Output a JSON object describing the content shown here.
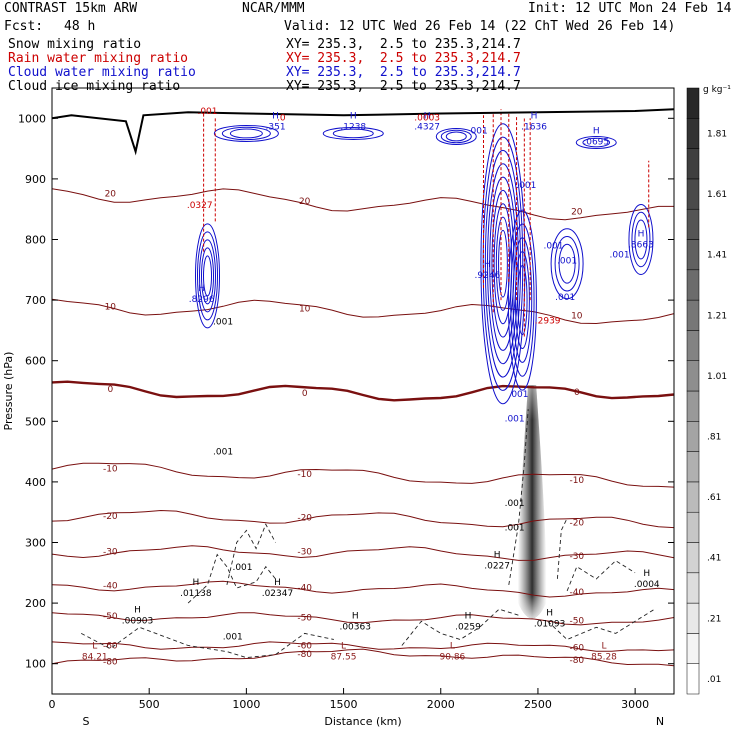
{
  "header": {
    "model": "CONTRAST 15km ARW",
    "center": "NCAR/MMM",
    "init": "Init: 12 UTC Mon 24 Feb 14",
    "fcst_label": "Fcst:",
    "fcst_value": "48 h",
    "valid": "Valid: 12 UTC Wed 26 Feb 14 (22 ChT Wed 26 Feb 14)",
    "fields": [
      {
        "name": "Snow mixing ratio",
        "xy": "XY= 235.3,  2.5 to 235.3,214.7",
        "color": "#000000"
      },
      {
        "name": "Rain water mixing ratio",
        "xy": "XY= 235.3,  2.5 to 235.3,214.7",
        "color": "#cc0000"
      },
      {
        "name": "Cloud water mixing ratio",
        "xy": "XY= 235.3,  2.5 to 235.3,214.7",
        "color": "#1010cc"
      },
      {
        "name": "Cloud ice mixing ratio",
        "xy": "XY= 235.3,  2.5 to 235.3,214.7",
        "color": "#000000"
      }
    ]
  },
  "chart_data": {
    "type": "cross-section",
    "xlabel": "Distance (km)",
    "ylabel": "Pressure (hPa)",
    "xlim": [
      0,
      3200
    ],
    "ylim": [
      1050,
      50
    ],
    "x_ticks": [
      "0",
      "500",
      "1000",
      "1500",
      "2000",
      "2500",
      "3000"
    ],
    "y_ticks": [
      "100",
      "200",
      "300",
      "400",
      "500",
      "600",
      "700",
      "800",
      "900",
      "1000"
    ],
    "x_end_labels": [
      "S",
      "N"
    ],
    "colorbar": {
      "units": "g kg⁻¹",
      "ticks": [
        "1.81",
        "1.61",
        "1.41",
        "1.21",
        "1.01",
        ".81",
        ".61",
        ".41",
        ".21",
        ".01"
      ],
      "levels": [
        0.01,
        0.11,
        0.21,
        0.31,
        0.41,
        0.51,
        0.61,
        0.71,
        0.81,
        0.91,
        1.01,
        1.11,
        1.21,
        1.31,
        1.41,
        1.51,
        1.61,
        1.71,
        1.81,
        1.91
      ]
    },
    "temperature_isotherms": [
      {
        "label": "-80",
        "p": [
          100,
          120,
          100
        ]
      },
      {
        "label": "-60",
        "p": [
          130,
          130,
          125
        ]
      },
      {
        "label": "-50",
        "p": [
          180,
          175,
          170
        ]
      },
      {
        "label": "-40",
        "p": [
          230,
          225,
          215
        ]
      },
      {
        "label": "-30",
        "p": [
          285,
          285,
          275
        ]
      },
      {
        "label": "-20",
        "p": [
          345,
          340,
          330
        ]
      },
      {
        "label": "-10",
        "p": [
          425,
          410,
          400
        ]
      },
      {
        "label": "0",
        "p": [
          555,
          545,
          550
        ]
      },
      {
        "label": "10",
        "p": [
          690,
          685,
          670
        ]
      },
      {
        "label": "20",
        "p": [
          880,
          860,
          840
        ]
      }
    ],
    "terrain": {
      "x": [
        0,
        100,
        380,
        430,
        470,
        700,
        1000,
        1500,
        2000,
        2500,
        3000,
        3200
      ],
      "p": [
        1000,
        1005,
        995,
        945,
        1005,
        1010,
        1008,
        1005,
        1008,
        1010,
        1012,
        1015
      ]
    },
    "ice_plume": {
      "x_center": 2470,
      "p_top": 165,
      "p_bottom": 560
    },
    "extrema_labels": [
      {
        "kind": "L",
        "value": "84.21",
        "x": 220,
        "p": 110,
        "color": "#8b1a1a"
      },
      {
        "kind": "H",
        "value": ".00903",
        "x": 440,
        "p": 170,
        "color": "#000000"
      },
      {
        "kind": "H",
        "value": ".01138",
        "x": 740,
        "p": 215,
        "color": "#000000"
      },
      {
        "kind": "H",
        "value": ".02347",
        "x": 1160,
        "p": 215,
        "color": "#000000"
      },
      {
        "kind": "L",
        "value": "87.55",
        "x": 1500,
        "p": 110,
        "color": "#8b1a1a"
      },
      {
        "kind": "H",
        "value": ".00363",
        "x": 1560,
        "p": 160,
        "color": "#000000"
      },
      {
        "kind": "L",
        "value": "90.86",
        "x": 2060,
        "p": 110,
        "color": "#8b1a1a"
      },
      {
        "kind": "H",
        "value": ".0259",
        "x": 2140,
        "p": 160,
        "color": "#000000"
      },
      {
        "kind": "H",
        "value": ".01093",
        "x": 2560,
        "p": 165,
        "color": "#000000"
      },
      {
        "kind": "L",
        "value": "85.28",
        "x": 2840,
        "p": 110,
        "color": "#8b1a1a"
      },
      {
        "kind": "H",
        "value": ".0227",
        "x": 2290,
        "p": 260,
        "color": "#000000"
      },
      {
        "kind": "H",
        "value": ".0004",
        "x": 3060,
        "p": 230,
        "color": "#000000"
      },
      {
        "kind": "H",
        "value": ".8296",
        "x": 770,
        "p": 700,
        "color": "#1010cc"
      },
      {
        "kind": "H",
        "value": ".9246",
        "x": 2240,
        "p": 740,
        "color": "#1010cc"
      },
      {
        "kind": "H",
        "value": ".8663",
        "x": 3030,
        "p": 790,
        "color": "#1010cc"
      },
      {
        "kind": "H",
        "value": ".351",
        "x": 1150,
        "p": 985,
        "color": "#1010cc"
      },
      {
        "kind": "H",
        "value": ".1238",
        "x": 1550,
        "p": 985,
        "color": "#1010cc"
      },
      {
        "kind": "H",
        "value": ".4327",
        "x": 1930,
        "p": 985,
        "color": "#1010cc"
      },
      {
        "kind": "H",
        "value": ".1636",
        "x": 2480,
        "p": 985,
        "color": "#1010cc"
      },
      {
        "kind": "H",
        "value": ".0695",
        "x": 2800,
        "p": 960,
        "color": "#1010cc"
      },
      {
        "kind": "",
        "value": ".0003",
        "x": 1930,
        "p": 1000,
        "color": "#cc0000"
      },
      {
        "kind": "",
        "value": ".2939",
        "x": 2550,
        "p": 665,
        "color": "#cc0000"
      },
      {
        "kind": "",
        "value": ".0327",
        "x": 760,
        "p": 855,
        "color": "#cc0000"
      },
      {
        "kind": "",
        "value": ".0",
        "x": 1180,
        "p": 1000,
        "color": "#cc0000"
      },
      {
        "kind": "",
        "value": ".001",
        "x": 800,
        "p": 1010,
        "color": "#cc0000"
      }
    ],
    "small_labels": [
      ".001",
      ".001",
      ".001",
      ".001",
      ".001",
      ".001",
      ".001",
      ".001",
      ".001",
      ".001",
      ".001",
      ".001",
      ".001",
      ".001"
    ]
  }
}
